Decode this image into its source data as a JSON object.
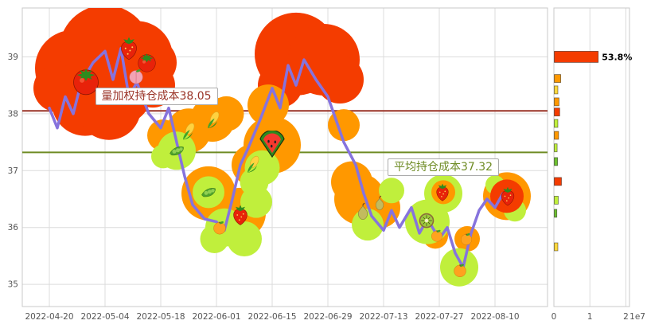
{
  "palette": {
    "red": "#f43c00",
    "orange": "#ff9800",
    "greenyellow": "#c0ef3c",
    "green": "#6cc02e",
    "yellow": "#ffd83d",
    "line": "#8673dd",
    "grid": "#dcdcdc",
    "tick_text": "#555555"
  },
  "chart_data": [
    {
      "type": "line",
      "title": "",
      "xlabel": "",
      "ylabel": "",
      "xlim": [
        -6.8,
        125.2
      ],
      "ylim": [
        34.61,
        39.86
      ],
      "yticks": [
        35,
        36,
        37,
        38,
        39
      ],
      "xticks": [
        {
          "day": 0,
          "label": "2022-04-20"
        },
        {
          "day": 14,
          "label": "2022-05-04"
        },
        {
          "day": 28,
          "label": "2022-05-18"
        },
        {
          "day": 42,
          "label": "2022-06-01"
        },
        {
          "day": 56,
          "label": "2022-06-15"
        },
        {
          "day": 70,
          "label": "2022-06-29"
        },
        {
          "day": 84,
          "label": "2022-07-13"
        },
        {
          "day": 98,
          "label": "2022-07-27"
        },
        {
          "day": 112,
          "label": "2022-08-10"
        }
      ],
      "hlines": [
        {
          "name": "vwap-cost-line",
          "label": "量加权持仓成本38.05",
          "value": 38.05,
          "color": "#9a3327",
          "label_day": 11.5,
          "label_side": "above"
        },
        {
          "name": "avg-cost-line",
          "label": "平均持仓成本37.32",
          "value": 37.32,
          "color": "#6e8b23",
          "label_day": 85,
          "label_side": "below"
        }
      ],
      "series": {
        "name": "price",
        "x": [
          0,
          2,
          4,
          6,
          8,
          11,
          14,
          16,
          18,
          20,
          22,
          25,
          28,
          30,
          32,
          34,
          36,
          39,
          42,
          44,
          46,
          48,
          50,
          53,
          56,
          58,
          60,
          62,
          64,
          67,
          70,
          72,
          74,
          77,
          79,
          81,
          84,
          86,
          88,
          91,
          93,
          95,
          98,
          100,
          102,
          104,
          106,
          108,
          110,
          112,
          114
        ],
        "y": [
          38.1,
          37.75,
          38.3,
          38.0,
          38.55,
          38.9,
          39.1,
          38.6,
          39.15,
          38.3,
          38.55,
          38.0,
          37.75,
          38.1,
          37.5,
          36.9,
          36.4,
          36.15,
          36.1,
          35.95,
          36.5,
          37.1,
          37.4,
          37.9,
          38.45,
          38.1,
          38.85,
          38.5,
          38.95,
          38.6,
          38.3,
          37.9,
          37.5,
          37.1,
          36.6,
          36.2,
          35.95,
          36.3,
          36.0,
          36.35,
          35.9,
          36.15,
          35.8,
          36.0,
          35.55,
          35.3,
          35.9,
          36.3,
          36.5,
          36.35,
          36.6
        ]
      },
      "bubbles": [
        {
          "day": 6,
          "price": 38.8,
          "r": 48,
          "color": "red"
        },
        {
          "day": 14,
          "price": 39.1,
          "r": 58,
          "color": "red"
        },
        {
          "day": 22,
          "price": 39.0,
          "r": 45,
          "color": "red"
        },
        {
          "day": 9,
          "price": 38.2,
          "r": 42,
          "color": "red"
        },
        {
          "day": 18,
          "price": 38.35,
          "r": 38,
          "color": "red"
        },
        {
          "day": 2,
          "price": 38.45,
          "r": 30,
          "color": "red"
        },
        {
          "day": 26,
          "price": 38.5,
          "r": 28,
          "color": "red"
        },
        {
          "day": 15,
          "price": 38.1,
          "r": 40,
          "color": "red"
        },
        {
          "day": 26,
          "price": 38.9,
          "r": 30,
          "color": "red"
        },
        {
          "day": 62,
          "price": 39.05,
          "r": 52,
          "color": "red"
        },
        {
          "day": 69,
          "price": 38.95,
          "r": 45,
          "color": "red"
        },
        {
          "day": 73,
          "price": 38.6,
          "r": 30,
          "color": "red"
        },
        {
          "day": 58,
          "price": 38.5,
          "r": 28,
          "color": "red"
        },
        {
          "day": 35,
          "price": 37.7,
          "r": 28,
          "color": "orange"
        },
        {
          "day": 41,
          "price": 37.9,
          "r": 28,
          "color": "orange"
        },
        {
          "day": 51,
          "price": 37.1,
          "r": 26,
          "color": "orange"
        },
        {
          "day": 55,
          "price": 38.15,
          "r": 26,
          "color": "orange"
        },
        {
          "day": 56,
          "price": 37.45,
          "r": 36,
          "color": "orange"
        },
        {
          "day": 40,
          "price": 36.6,
          "r": 34,
          "color": "orange"
        },
        {
          "day": 48,
          "price": 36.25,
          "r": 32,
          "color": "orange"
        },
        {
          "day": 76,
          "price": 36.8,
          "r": 26,
          "color": "orange"
        },
        {
          "day": 78,
          "price": 36.5,
          "r": 32,
          "color": "orange"
        },
        {
          "day": 83,
          "price": 36.35,
          "r": 26,
          "color": "orange"
        },
        {
          "day": 28.6,
          "price": 37.62,
          "r": 20,
          "color": "orange"
        },
        {
          "day": 74,
          "price": 37.8,
          "r": 20,
          "color": "orange"
        },
        {
          "day": 97,
          "price": 35.85,
          "r": 16,
          "color": "orange"
        },
        {
          "day": 105,
          "price": 35.8,
          "r": 16,
          "color": "orange"
        },
        {
          "day": 115,
          "price": 36.55,
          "r": 30,
          "color": "orange"
        },
        {
          "day": 44.5,
          "price": 38.0,
          "r": 22,
          "color": "orange"
        },
        {
          "day": 32,
          "price": 37.35,
          "r": 24,
          "color": "greenyellow"
        },
        {
          "day": 40,
          "price": 36.62,
          "r": 20,
          "color": "greenyellow"
        },
        {
          "day": 51.5,
          "price": 36.8,
          "r": 18,
          "color": "greenyellow"
        },
        {
          "day": 44,
          "price": 36.0,
          "r": 24,
          "color": "greenyellow"
        },
        {
          "day": 49,
          "price": 35.8,
          "r": 22,
          "color": "greenyellow"
        },
        {
          "day": 41.5,
          "price": 35.8,
          "r": 18,
          "color": "greenyellow"
        },
        {
          "day": 52,
          "price": 36.45,
          "r": 20,
          "color": "greenyellow"
        },
        {
          "day": 28.6,
          "price": 37.25,
          "r": 15,
          "color": "greenyellow"
        },
        {
          "day": 53.5,
          "price": 37.05,
          "r": 22,
          "color": "greenyellow"
        },
        {
          "day": 80,
          "price": 36.05,
          "r": 20,
          "color": "greenyellow"
        },
        {
          "day": 86,
          "price": 36.65,
          "r": 16,
          "color": "greenyellow"
        },
        {
          "day": 95,
          "price": 36.1,
          "r": 28,
          "color": "greenyellow"
        },
        {
          "day": 99,
          "price": 36.6,
          "r": 24,
          "color": "greenyellow"
        },
        {
          "day": 103,
          "price": 35.3,
          "r": 24,
          "color": "greenyellow"
        },
        {
          "day": 117,
          "price": 36.3,
          "r": 14,
          "color": "greenyellow"
        },
        {
          "day": 112,
          "price": 36.75,
          "r": 12,
          "color": "greenyellow"
        },
        {
          "day": 99,
          "price": 36.62,
          "r": 15,
          "color": "orange"
        },
        {
          "day": 115,
          "price": 36.55,
          "r": 21,
          "color": "red"
        }
      ],
      "fruits": [
        {
          "type": "tomato",
          "day": 9.2,
          "price": 38.6,
          "size": 40
        },
        {
          "type": "strawberry",
          "day": 20,
          "price": 39.15,
          "size": 34
        },
        {
          "type": "tomato",
          "day": 24.5,
          "price": 38.92,
          "size": 28
        },
        {
          "type": "peach",
          "day": 21.8,
          "price": 38.66,
          "size": 22
        },
        {
          "type": "corn",
          "day": 35,
          "price": 37.68,
          "size": 26
        },
        {
          "type": "peas",
          "day": 32,
          "price": 37.35,
          "size": 24
        },
        {
          "type": "corn",
          "day": 41.2,
          "price": 37.88,
          "size": 26
        },
        {
          "type": "corn",
          "day": 51.2,
          "price": 37.1,
          "size": 26
        },
        {
          "type": "peas",
          "day": 40,
          "price": 36.62,
          "size": 24
        },
        {
          "type": "watermelon",
          "day": 56,
          "price": 37.45,
          "size": 36
        },
        {
          "type": "strawberry",
          "day": 48,
          "price": 36.22,
          "size": 30
        },
        {
          "type": "orange",
          "day": 42.8,
          "price": 36.0,
          "size": 20
        },
        {
          "type": "pear",
          "day": 78.8,
          "price": 36.27,
          "size": 26
        },
        {
          "type": "pear",
          "day": 83,
          "price": 36.42,
          "size": 22
        },
        {
          "type": "kiwi",
          "day": 94.8,
          "price": 36.12,
          "size": 24
        },
        {
          "type": "strawberry",
          "day": 98.8,
          "price": 36.62,
          "size": 26
        },
        {
          "type": "orange",
          "day": 97.4,
          "price": 35.86,
          "size": 18
        },
        {
          "type": "orange",
          "day": 104.8,
          "price": 35.8,
          "size": 18
        },
        {
          "type": "orange",
          "day": 103.2,
          "price": 35.25,
          "size": 20
        },
        {
          "type": "strawberry",
          "day": 115.2,
          "price": 36.55,
          "size": 28
        }
      ]
    },
    {
      "type": "bar",
      "orientation": "horizontal",
      "xlim": [
        0,
        2.1
      ],
      "xticks": [
        0,
        1,
        2
      ],
      "scale_label": "1e7",
      "bars": [
        {
          "price": 39.0,
          "value": 1.22,
          "color": "red",
          "h": 14,
          "label": "53.8%"
        },
        {
          "price": 38.62,
          "value": 0.18,
          "color": "orange"
        },
        {
          "price": 38.42,
          "value": 0.1,
          "color": "yellow"
        },
        {
          "price": 38.21,
          "value": 0.13,
          "color": "orange"
        },
        {
          "price": 38.03,
          "value": 0.15,
          "color": "red"
        },
        {
          "price": 37.83,
          "value": 0.1,
          "color": "greenyellow"
        },
        {
          "price": 37.62,
          "value": 0.12,
          "color": "orange"
        },
        {
          "price": 37.4,
          "value": 0.08,
          "color": "greenyellow"
        },
        {
          "price": 37.16,
          "value": 0.09,
          "color": "green"
        },
        {
          "price": 36.81,
          "value": 0.2,
          "color": "red"
        },
        {
          "price": 36.48,
          "value": 0.11,
          "color": "greenyellow"
        },
        {
          "price": 36.25,
          "value": 0.07,
          "color": "green"
        },
        {
          "price": 35.66,
          "value": 0.1,
          "color": "yellow"
        }
      ]
    }
  ]
}
